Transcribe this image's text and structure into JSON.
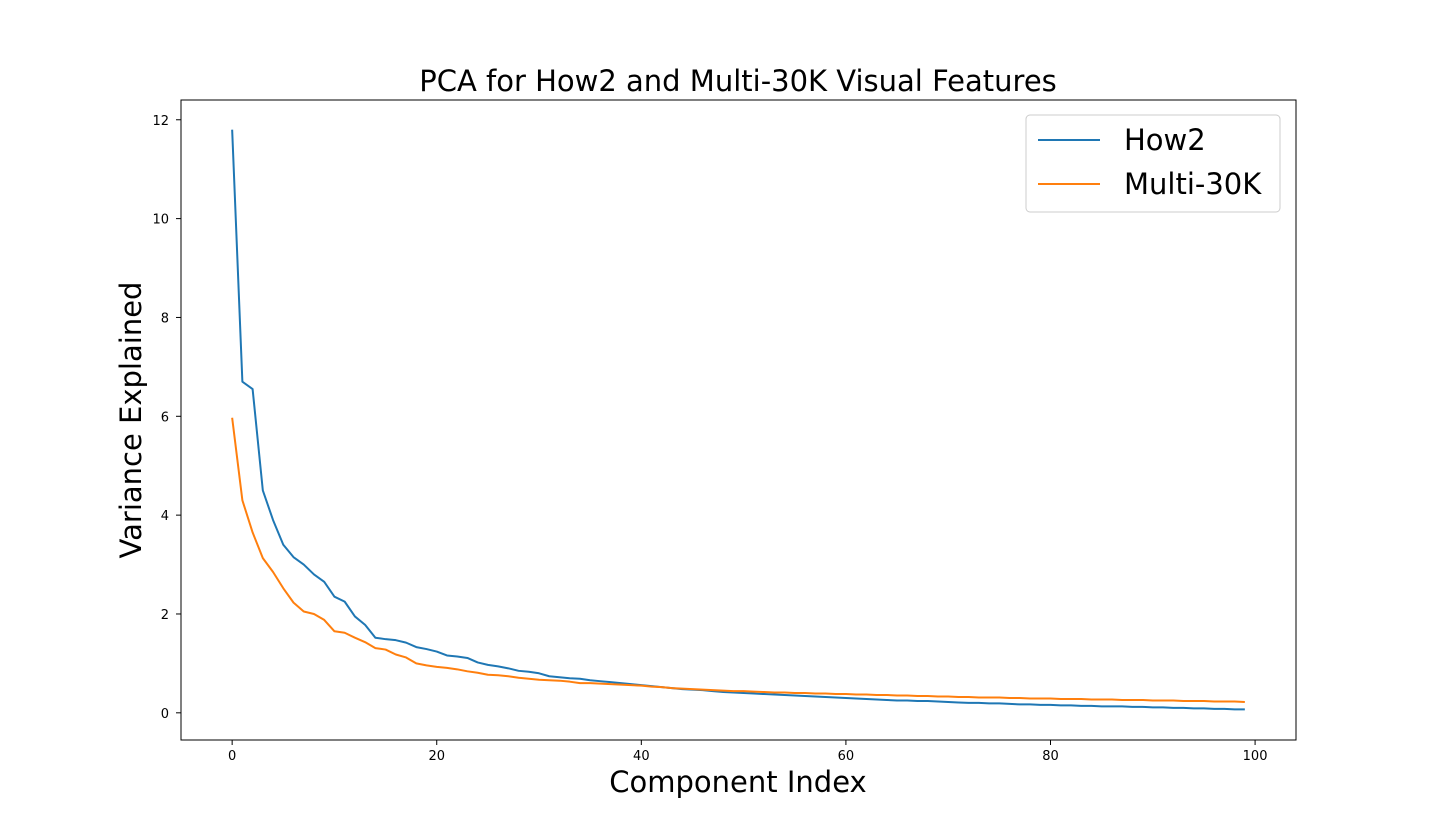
{
  "chart_data": {
    "type": "line",
    "title": "PCA for How2 and Multi-30K Visual Features",
    "xlabel": "Component Index",
    "ylabel": "Variance Explained",
    "xlim": [
      -5,
      104
    ],
    "ylim": [
      -0.55,
      12.4
    ],
    "xticks": [
      0,
      20,
      40,
      60,
      80,
      100
    ],
    "xtick_labels": [
      "0",
      "20",
      "40",
      "60",
      "80",
      "100"
    ],
    "yticks": [
      0,
      2,
      4,
      6,
      8,
      10,
      12
    ],
    "ytick_labels": [
      "0",
      "2",
      "4",
      "6",
      "8",
      "10",
      "12"
    ],
    "grid": false,
    "legend_position": "top-right",
    "x": [
      0,
      1,
      2,
      3,
      4,
      5,
      6,
      7,
      8,
      9,
      10,
      11,
      12,
      13,
      14,
      15,
      16,
      17,
      18,
      19,
      20,
      21,
      22,
      23,
      24,
      25,
      26,
      27,
      28,
      29,
      30,
      31,
      32,
      33,
      34,
      35,
      36,
      37,
      38,
      39,
      40,
      41,
      42,
      43,
      44,
      45,
      46,
      47,
      48,
      49,
      50,
      51,
      52,
      53,
      54,
      55,
      56,
      57,
      58,
      59,
      60,
      61,
      62,
      63,
      64,
      65,
      66,
      67,
      68,
      69,
      70,
      71,
      72,
      73,
      74,
      75,
      76,
      77,
      78,
      79,
      80,
      81,
      82,
      83,
      84,
      85,
      86,
      87,
      88,
      89,
      90,
      91,
      92,
      93,
      94,
      95,
      96,
      97,
      98,
      99
    ],
    "series": [
      {
        "name": "How2",
        "color": "#1f77b4",
        "values": [
          11.8,
          6.7,
          6.55,
          4.5,
          3.9,
          3.4,
          3.15,
          3.0,
          2.8,
          2.65,
          2.35,
          2.25,
          1.95,
          1.78,
          1.52,
          1.49,
          1.47,
          1.42,
          1.33,
          1.29,
          1.24,
          1.16,
          1.14,
          1.11,
          1.02,
          0.97,
          0.94,
          0.9,
          0.85,
          0.83,
          0.8,
          0.74,
          0.72,
          0.7,
          0.69,
          0.66,
          0.64,
          0.62,
          0.6,
          0.58,
          0.56,
          0.54,
          0.52,
          0.5,
          0.48,
          0.47,
          0.46,
          0.44,
          0.42,
          0.41,
          0.4,
          0.39,
          0.38,
          0.37,
          0.36,
          0.35,
          0.34,
          0.33,
          0.32,
          0.31,
          0.3,
          0.29,
          0.28,
          0.27,
          0.26,
          0.25,
          0.25,
          0.24,
          0.24,
          0.23,
          0.22,
          0.21,
          0.2,
          0.2,
          0.19,
          0.19,
          0.18,
          0.17,
          0.17,
          0.16,
          0.16,
          0.15,
          0.15,
          0.14,
          0.14,
          0.13,
          0.13,
          0.13,
          0.12,
          0.12,
          0.11,
          0.11,
          0.1,
          0.1,
          0.09,
          0.09,
          0.08,
          0.08,
          0.07,
          0.07
        ]
      },
      {
        "name": "Multi-30K",
        "color": "#ff7f0e",
        "values": [
          5.97,
          4.3,
          3.65,
          3.13,
          2.85,
          2.52,
          2.23,
          2.05,
          2.0,
          1.88,
          1.65,
          1.62,
          1.52,
          1.43,
          1.31,
          1.28,
          1.18,
          1.12,
          1.0,
          0.96,
          0.93,
          0.91,
          0.88,
          0.84,
          0.81,
          0.77,
          0.76,
          0.74,
          0.71,
          0.69,
          0.67,
          0.66,
          0.65,
          0.63,
          0.6,
          0.6,
          0.59,
          0.58,
          0.57,
          0.56,
          0.55,
          0.53,
          0.52,
          0.5,
          0.49,
          0.48,
          0.47,
          0.46,
          0.45,
          0.44,
          0.44,
          0.43,
          0.42,
          0.41,
          0.41,
          0.4,
          0.4,
          0.39,
          0.39,
          0.38,
          0.38,
          0.37,
          0.37,
          0.36,
          0.36,
          0.35,
          0.35,
          0.34,
          0.34,
          0.33,
          0.33,
          0.32,
          0.32,
          0.31,
          0.31,
          0.31,
          0.3,
          0.3,
          0.29,
          0.29,
          0.29,
          0.28,
          0.28,
          0.28,
          0.27,
          0.27,
          0.27,
          0.26,
          0.26,
          0.26,
          0.25,
          0.25,
          0.25,
          0.24,
          0.24,
          0.24,
          0.23,
          0.23,
          0.23,
          0.22
        ]
      }
    ]
  }
}
